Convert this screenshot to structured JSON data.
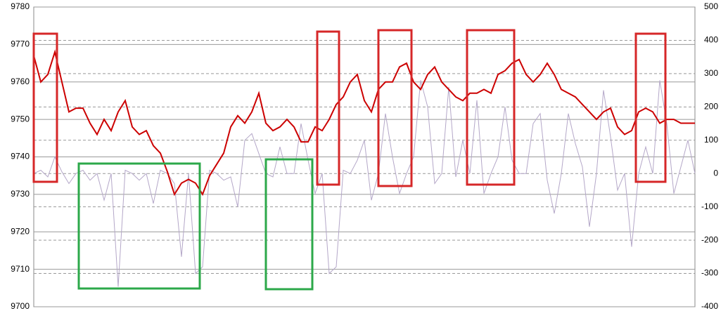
{
  "chart_data": {
    "type": "line",
    "ylim": [
      9700,
      9780
    ],
    "yticks": [
      9700,
      9710,
      9720,
      9730,
      9740,
      9750,
      9760,
      9770,
      9780
    ],
    "y2lim": [
      -400,
      500
    ],
    "y2ticks": [
      -400,
      -300,
      -200,
      -100,
      0,
      100,
      200,
      300,
      400,
      500
    ],
    "grid": true,
    "series": [
      {
        "color": "#cc0000",
        "values": [
          9767,
          9760,
          9762,
          9768,
          9760,
          9752,
          9753,
          9753,
          9749,
          9746,
          9750,
          9747,
          9752,
          9755,
          9748,
          9746,
          9747,
          9743,
          9741,
          9736,
          9730,
          9733,
          9734,
          9733,
          9730,
          9735,
          9738,
          9741,
          9748,
          9751,
          9749,
          9752,
          9757,
          9749,
          9747,
          9748,
          9750,
          9748,
          9744,
          9744,
          9748,
          9747,
          9750,
          9754,
          9756,
          9760,
          9762,
          9755,
          9752,
          9758,
          9760,
          9760,
          9764,
          9765,
          9760,
          9758,
          9762,
          9764,
          9760,
          9758,
          9756,
          9755,
          9757,
          9757,
          9758,
          9757,
          9762,
          9763,
          9765,
          9766,
          9762,
          9760,
          9762,
          9765,
          9762,
          9758,
          9757,
          9756,
          9754,
          9752,
          9750,
          9752,
          9753,
          9748,
          9746,
          9747,
          9752,
          9753,
          9752,
          9749,
          9750,
          9750,
          9749,
          9749,
          9749
        ]
      },
      {
        "color": "#b4a7c8",
        "axis": "y2",
        "values": [
          0,
          10,
          -10,
          50,
          5,
          -30,
          0,
          10,
          -20,
          0,
          -80,
          0,
          -340,
          10,
          0,
          -20,
          0,
          -90,
          10,
          0,
          -30,
          -250,
          0,
          -300,
          -280,
          10,
          0,
          -20,
          -10,
          -100,
          100,
          120,
          60,
          0,
          -10,
          80,
          0,
          0,
          150,
          40,
          -60,
          0,
          -300,
          -280,
          10,
          0,
          40,
          100,
          -80,
          0,
          180,
          50,
          -60,
          0,
          50,
          280,
          200,
          -30,
          0,
          260,
          -10,
          100,
          0,
          220,
          -60,
          0,
          50,
          200,
          40,
          0,
          0,
          150,
          180,
          -20,
          -120,
          0,
          180,
          90,
          20,
          -160,
          0,
          250,
          110,
          -50,
          0,
          -220,
          0,
          80,
          0,
          280,
          150,
          -60,
          20,
          100,
          0
        ]
      }
    ]
  }
}
